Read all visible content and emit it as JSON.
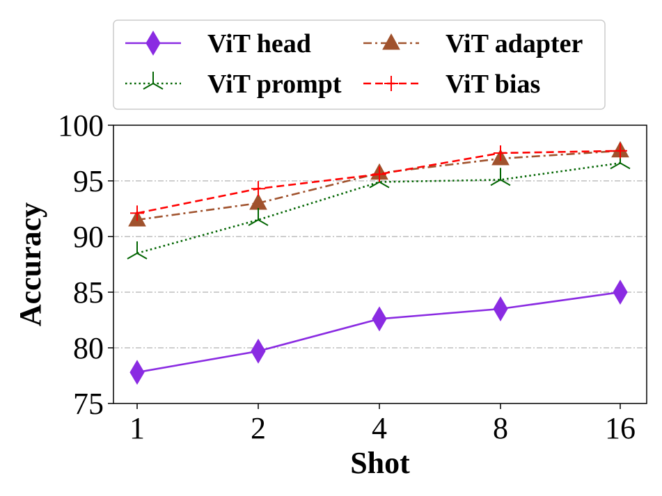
{
  "chart_data": {
    "type": "line",
    "title": "",
    "xlabel": "Shot",
    "ylabel": "Accuracy",
    "categories": [
      "1",
      "2",
      "4",
      "8",
      "16"
    ],
    "ylim": [
      75,
      100
    ],
    "yticks": [
      "75",
      "80",
      "85",
      "90",
      "95",
      "100"
    ],
    "ytick_values": [
      75,
      80,
      85,
      90,
      95,
      100
    ],
    "grid": "horizontal dash-dot",
    "legend_position": "top",
    "series": [
      {
        "name": "ViT head",
        "values": [
          77.8,
          79.7,
          82.6,
          83.5,
          85.0
        ],
        "color": "#8a2be2",
        "dash": "solid",
        "marker": "diamond"
      },
      {
        "name": "ViT adapter",
        "values": [
          91.5,
          93.0,
          95.7,
          97.0,
          97.7
        ],
        "color": "#a0522d",
        "dash": "dashdot",
        "marker": "triangle"
      },
      {
        "name": "ViT prompt",
        "values": [
          88.5,
          91.5,
          94.9,
          95.1,
          96.6
        ],
        "color": "#006400",
        "dash": "dotted",
        "marker": "tri_up"
      },
      {
        "name": "ViT bias",
        "values": [
          92.1,
          94.3,
          95.6,
          97.5,
          97.7
        ],
        "color": "#ff0000",
        "dash": "dashed",
        "marker": "plus"
      }
    ]
  }
}
